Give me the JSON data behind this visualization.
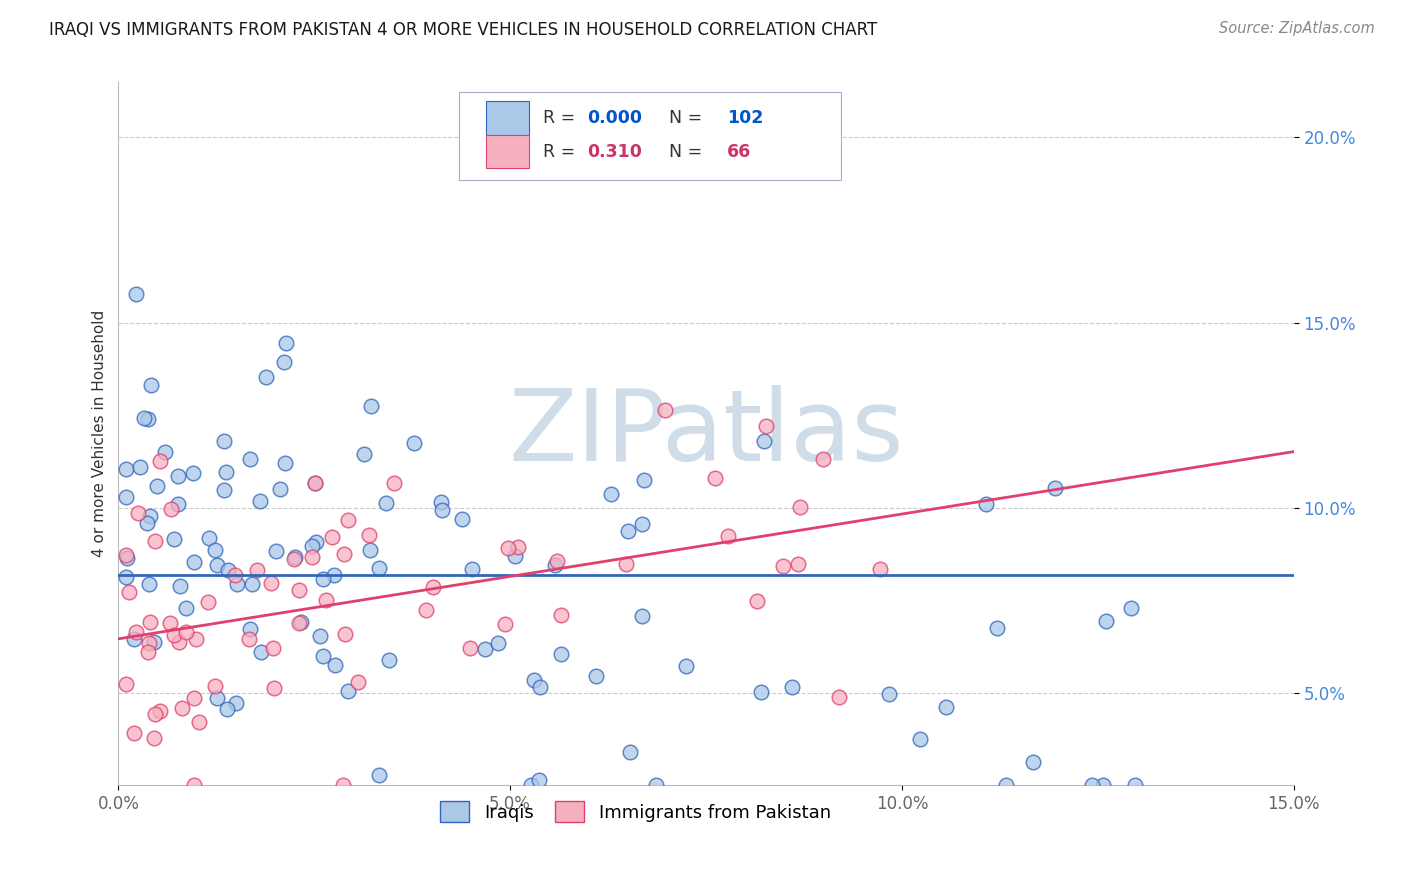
{
  "title": "IRAQI VS IMMIGRANTS FROM PAKISTAN 4 OR MORE VEHICLES IN HOUSEHOLD CORRELATION CHART",
  "source": "Source: ZipAtlas.com",
  "ylabel": "4 or more Vehicles in Household",
  "xmin": 0.0,
  "xmax": 0.15,
  "ymin": 0.025,
  "ymax": 0.215,
  "color_iraqi": "#aac8e8",
  "color_pakistan": "#f5b0c0",
  "line_color_iraqi": "#3366bb",
  "line_color_pakistan": "#e04070",
  "legend1_label": "Iraqis",
  "legend2_label": "Immigrants from Pakistan",
  "R_iraqi": 0.0,
  "N_iraqi": 102,
  "R_pakistan": 0.31,
  "N_pakistan": 66,
  "legend_R_color": "#0055cc",
  "legend_N_color": "#0055cc",
  "legend_R2_color": "#cc3366",
  "legend_N2_color": "#cc3366",
  "watermark_text": "ZIPatlas",
  "watermark_color": "#d0dce8",
  "background_color": "#ffffff",
  "grid_color": "#cccccc",
  "title_fontsize": 12,
  "axis_fontsize": 12,
  "ytick_color": "#4488dd",
  "xtick_color": "#666666"
}
